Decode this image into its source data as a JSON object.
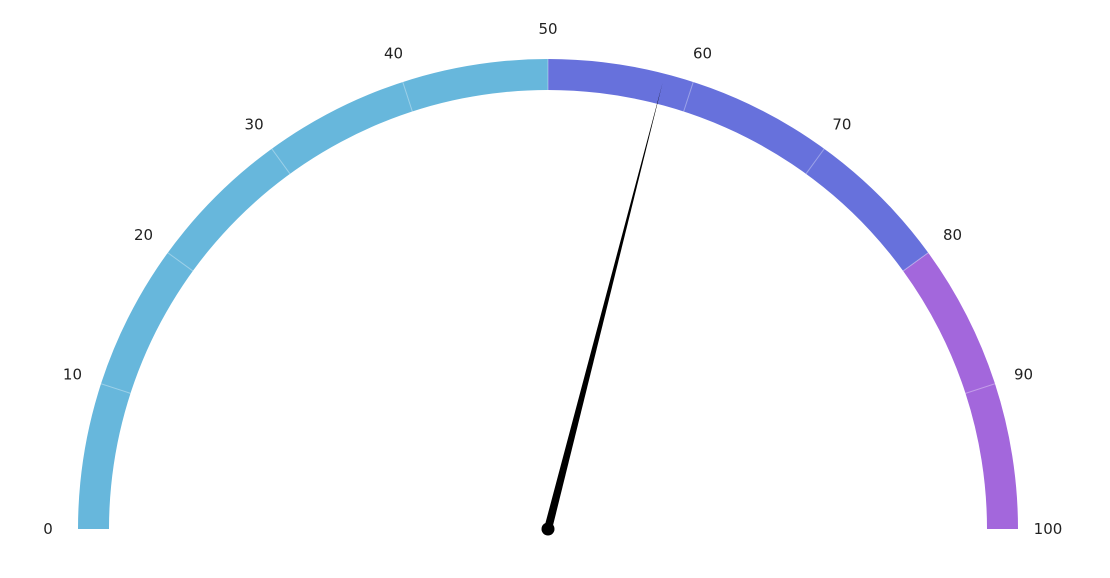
{
  "chart_data": {
    "type": "gauge",
    "min": 0,
    "max": 100,
    "value": 58,
    "tick_labels": [
      "0",
      "10",
      "20",
      "30",
      "40",
      "50",
      "60",
      "70",
      "80",
      "90",
      "100"
    ],
    "bands": [
      {
        "from": 0,
        "to": 50,
        "color": "#67b7dc"
      },
      {
        "from": 50,
        "to": 80,
        "color": "#6771dc"
      },
      {
        "from": 80,
        "to": 100,
        "color": "#a367dc"
      }
    ],
    "needle_color": "#000000"
  }
}
